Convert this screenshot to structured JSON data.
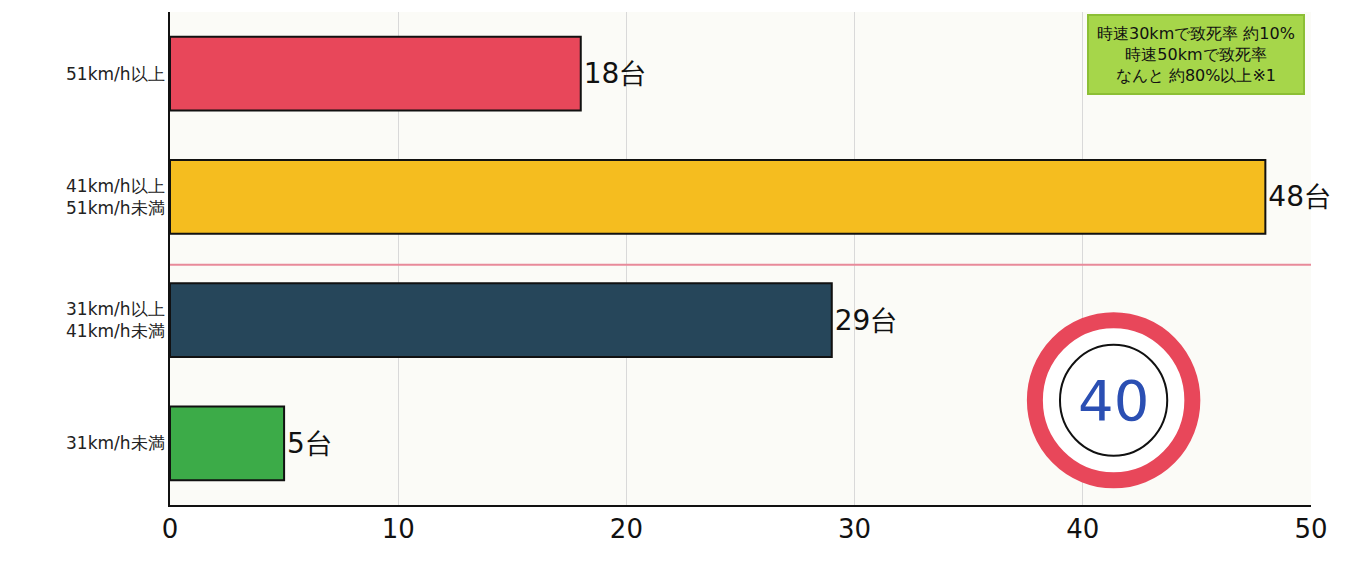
{
  "chart_data": {
    "type": "bar",
    "orientation": "horizontal",
    "categories": [
      "51km/h以上",
      "41km/h以上 51km/h未満",
      "31km/h以上 41km/h未満",
      "31km/h未満"
    ],
    "values": [
      18,
      48,
      29,
      5
    ],
    "value_labels": [
      "18台",
      "48台",
      "29台",
      "5台"
    ],
    "colors": [
      "#e8475a",
      "#f5bd1f",
      "#26465a",
      "#3cab48"
    ],
    "data_labels": true,
    "xlim": [
      0,
      50
    ],
    "xticks": [
      0,
      10,
      20,
      30,
      40,
      50
    ],
    "grid": true,
    "callout": [
      "時速30kmで致死率 約10%",
      "時速50kmで致死率",
      "なんと 約80%以上※1"
    ],
    "sign_text": "40"
  }
}
